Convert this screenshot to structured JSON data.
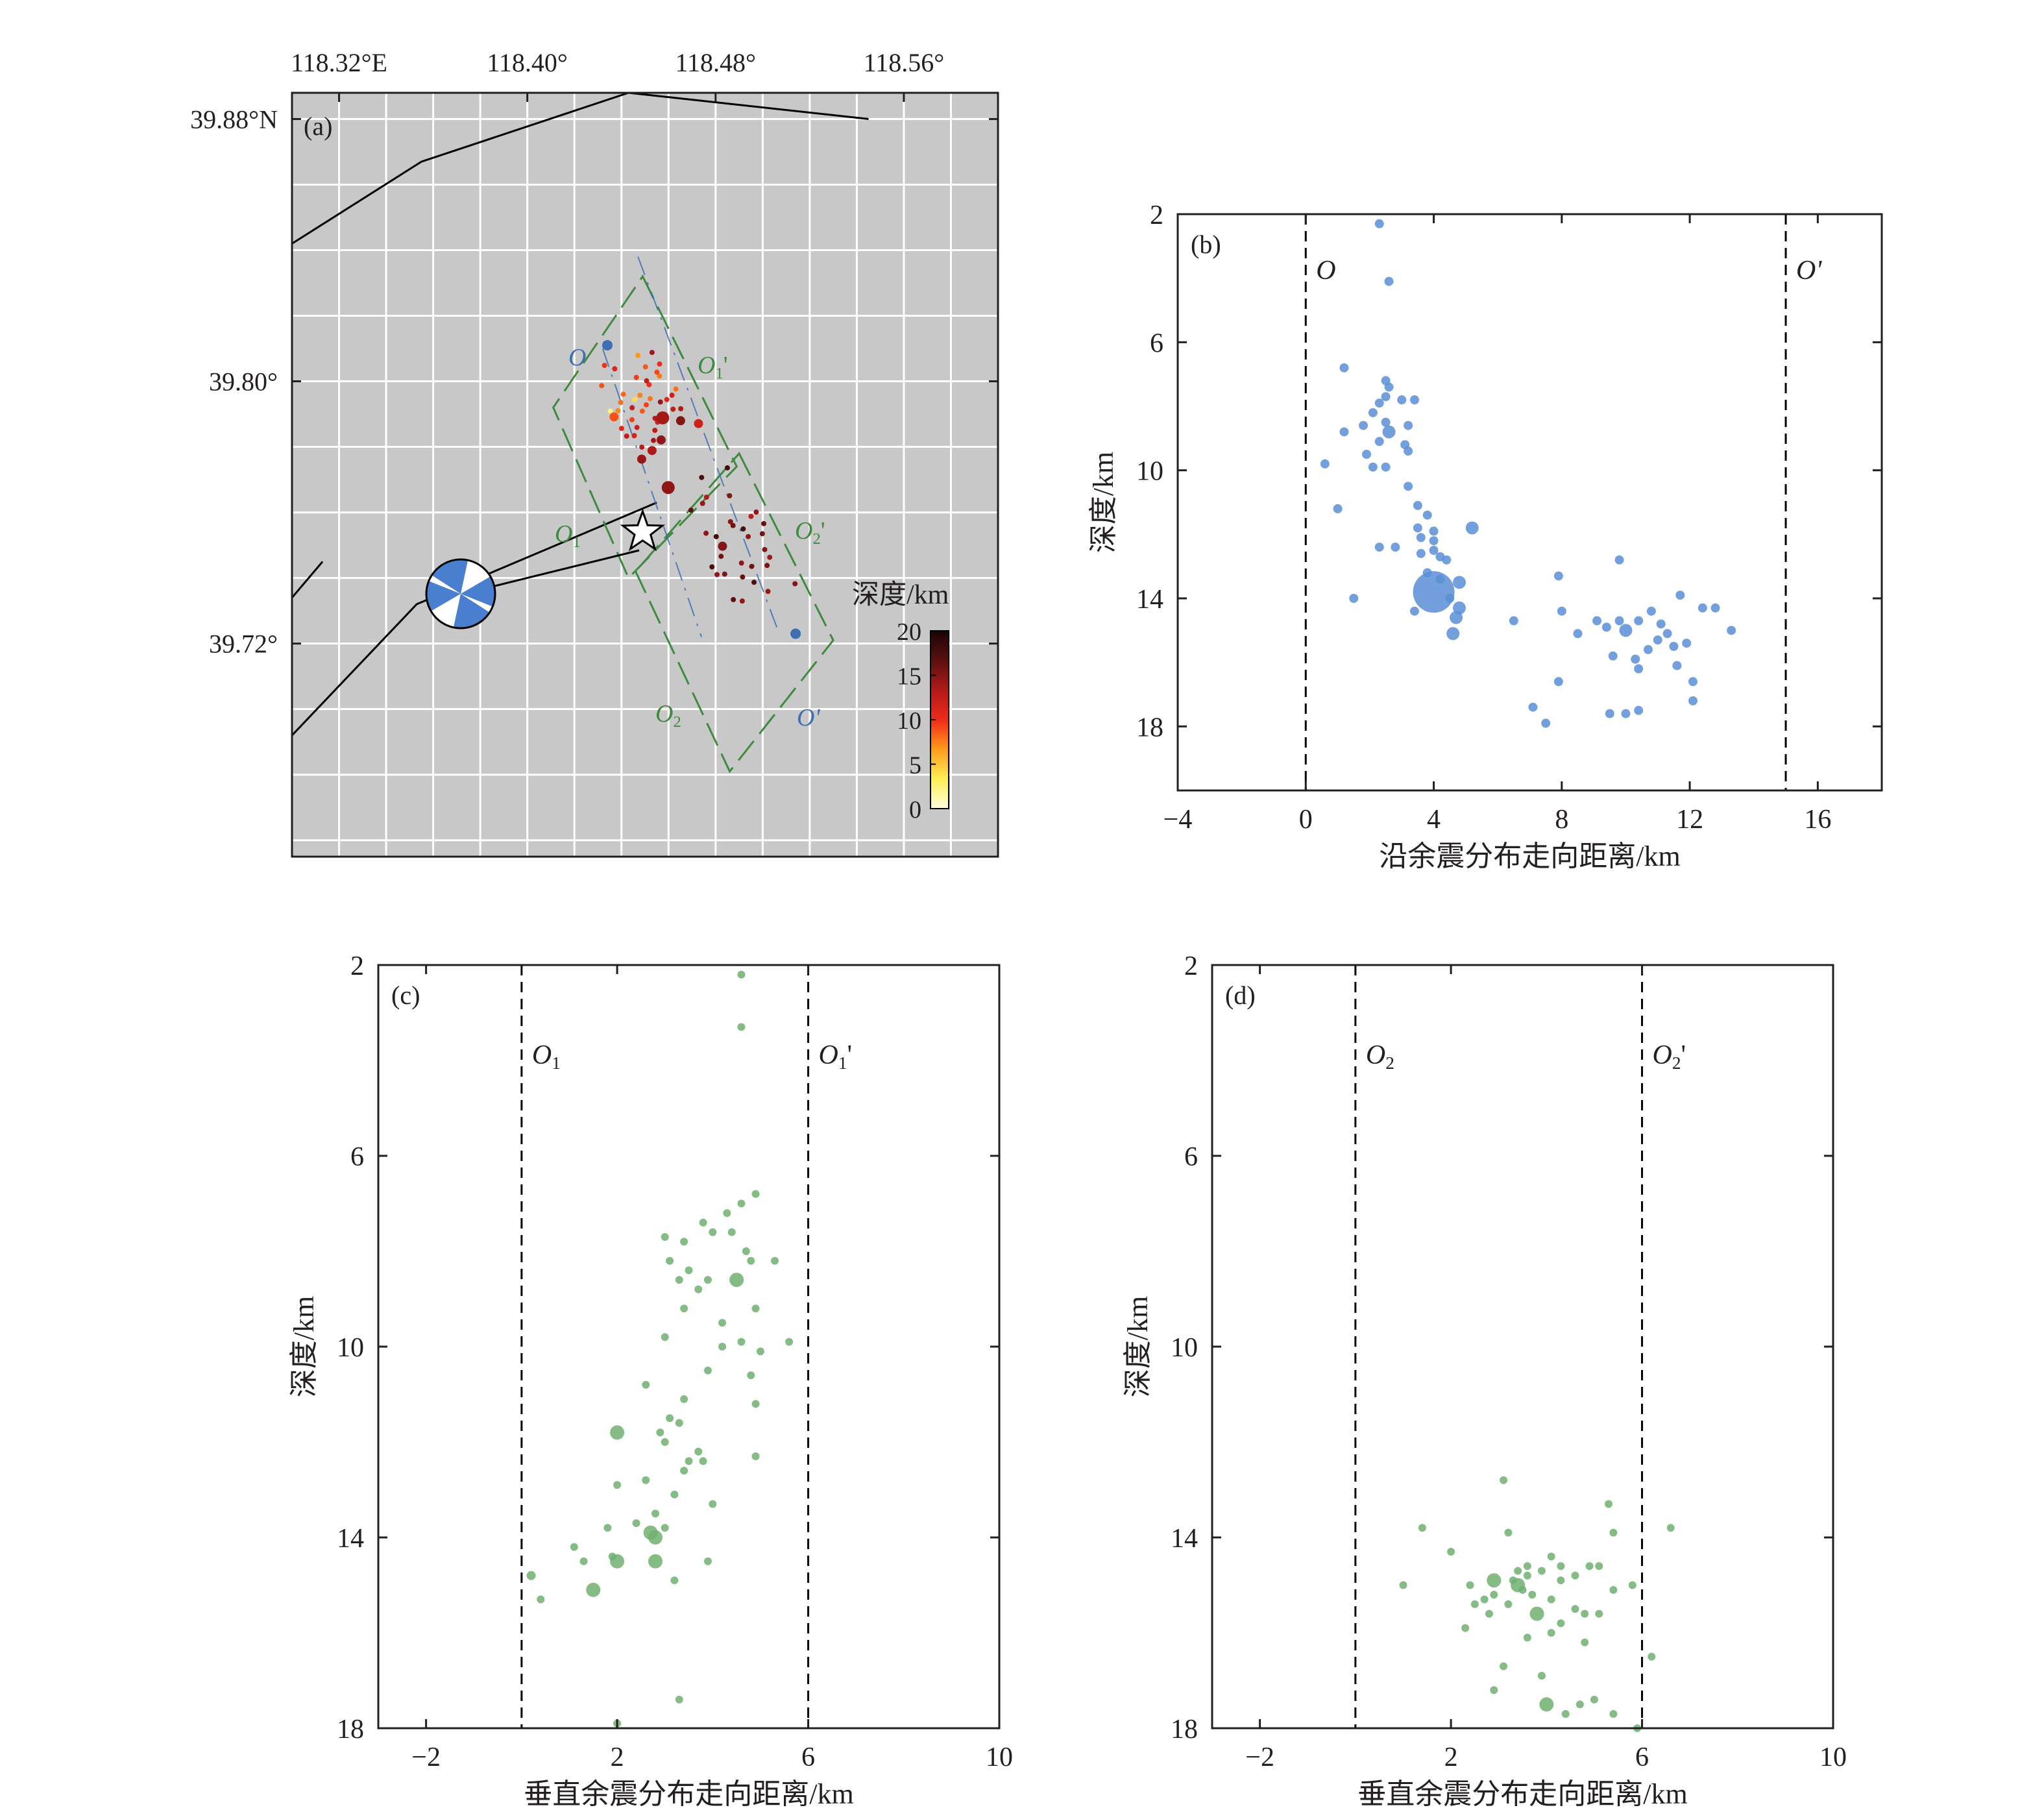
{
  "colors": {
    "map_bg": "#c8c8c8",
    "grid": "#ffffff",
    "fault": "#000000",
    "blue": "#5b8fd6",
    "blue_line": "#3e6fb3",
    "green": "#70b070",
    "green_dark": "#2e7d2e",
    "dash_green": "#3f8a3f",
    "axis": "#231f20"
  },
  "map": {
    "panel_label": "(a)",
    "lon_ticks": [
      118.32,
      118.4,
      118.48,
      118.56
    ],
    "lon_labels": [
      "118.32°E",
      "118.40°",
      "118.48°",
      "118.56°"
    ],
    "lat_ticks": [
      39.88,
      39.8,
      39.72
    ],
    "lat_labels": [
      "39.88°N",
      "39.80°",
      "39.72°"
    ],
    "lon_range": [
      118.3,
      118.6
    ],
    "lat_range": [
      39.655,
      39.888
    ],
    "faults": [
      [
        [
          118.3,
          39.842
        ],
        [
          118.355,
          39.867
        ],
        [
          118.443,
          39.888
        ],
        [
          118.545,
          39.88
        ]
      ],
      [
        [
          118.3,
          39.734
        ],
        [
          118.313,
          39.745
        ]
      ],
      [
        [
          118.3,
          39.692
        ],
        [
          118.353,
          39.732
        ],
        [
          118.455,
          39.763
        ]
      ]
    ],
    "box1": [
      [
        118.449,
        39.832
      ],
      [
        118.489,
        39.774
      ],
      [
        118.443,
        39.74
      ],
      [
        118.411,
        39.792
      ]
    ],
    "box2": [
      [
        118.49,
        39.778
      ],
      [
        118.53,
        39.721
      ],
      [
        118.486,
        39.681
      ],
      [
        118.446,
        39.742
      ]
    ],
    "blue_line_1": [
      [
        118.432,
        39.81
      ],
      [
        118.474,
        39.722
      ]
    ],
    "blue_line_2": [
      [
        118.447,
        39.838
      ],
      [
        118.506,
        39.725
      ]
    ],
    "label_O": "O",
    "label_Op": "O'",
    "label_O1": "O1",
    "label_O1p": "O1'",
    "label_O2": "O2",
    "label_O2p": "O2'",
    "point_O": [
      118.434,
      39.811
    ],
    "point_Op": [
      118.514,
      39.723
    ],
    "epicenter": [
      118.449,
      39.754
    ],
    "beachball": [
      118.372,
      39.734
    ],
    "colorbar_title": "深度/km",
    "colorbar_ticks": [
      0,
      5,
      10,
      15,
      20
    ],
    "colorbar_labels": [
      "0",
      "5",
      "10",
      "15",
      "20"
    ],
    "colorbar_stops": [
      "#ffffe0",
      "#ffee55",
      "#ff9a1a",
      "#ee2a1a",
      "#b21a1a",
      "#5a1010",
      "#1a0505"
    ]
  },
  "chart_data": [
    {
      "panel": "b",
      "type": "scatter",
      "panel_label": "(b)",
      "xlabel": "沿余震分布走向距离/km",
      "ylabel": "深度/km",
      "xlim": [
        -4,
        18
      ],
      "ylim": [
        20,
        2
      ],
      "xticks": [
        -4,
        0,
        4,
        8,
        12,
        16
      ],
      "xtick_labels": [
        "−4",
        "0",
        "4",
        "8",
        "12",
        "16"
      ],
      "yticks": [
        2,
        6,
        10,
        14,
        18
      ],
      "ytick_labels": [
        "2",
        "6",
        "10",
        "14",
        "18"
      ],
      "vlines": [
        0,
        15
      ],
      "vline_labels": [
        "O",
        "O'"
      ],
      "points": [
        [
          2.3,
          2.3,
          1
        ],
        [
          2.6,
          4.1,
          1
        ],
        [
          1.2,
          6.8,
          1
        ],
        [
          2.5,
          7.2,
          1
        ],
        [
          2.6,
          7.4,
          1
        ],
        [
          2.5,
          7.7,
          1
        ],
        [
          2.3,
          7.9,
          1
        ],
        [
          3.0,
          7.8,
          1
        ],
        [
          3.4,
          7.8,
          1
        ],
        [
          2.1,
          8.2,
          1
        ],
        [
          2.5,
          8.5,
          1
        ],
        [
          2.6,
          8.8,
          2
        ],
        [
          3.2,
          8.6,
          1
        ],
        [
          1.8,
          8.6,
          1
        ],
        [
          1.2,
          8.8,
          1
        ],
        [
          3.1,
          9.2,
          1
        ],
        [
          2.3,
          9.1,
          1
        ],
        [
          3.2,
          9.4,
          1
        ],
        [
          1.9,
          9.5,
          1
        ],
        [
          2.1,
          9.9,
          1
        ],
        [
          0.6,
          9.8,
          1
        ],
        [
          2.5,
          9.9,
          1
        ],
        [
          3.2,
          10.5,
          1
        ],
        [
          1.0,
          11.2,
          1
        ],
        [
          3.5,
          11.1,
          1
        ],
        [
          3.8,
          11.4,
          1
        ],
        [
          4.0,
          11.9,
          1
        ],
        [
          3.5,
          11.8,
          1
        ],
        [
          3.6,
          12.1,
          1
        ],
        [
          4.0,
          12.2,
          1
        ],
        [
          5.2,
          11.8,
          2
        ],
        [
          2.8,
          12.4,
          1
        ],
        [
          2.3,
          12.4,
          1
        ],
        [
          3.6,
          12.6,
          1
        ],
        [
          4.2,
          12.7,
          1
        ],
        [
          4.0,
          12.5,
          1
        ],
        [
          4.4,
          12.8,
          1
        ],
        [
          3.8,
          13.2,
          1
        ],
        [
          4.2,
          13.4,
          1
        ],
        [
          4.8,
          13.5,
          2
        ],
        [
          4.0,
          13.8,
          3
        ],
        [
          1.5,
          14.0,
          1
        ],
        [
          4.5,
          14.0,
          1
        ],
        [
          3.4,
          14.4,
          1
        ],
        [
          4.8,
          14.3,
          2
        ],
        [
          4.7,
          14.6,
          2
        ],
        [
          4.6,
          15.1,
          2
        ],
        [
          6.5,
          14.7,
          6
        ],
        [
          7.9,
          13.3,
          1
        ],
        [
          9.8,
          12.8,
          1
        ],
        [
          9.1,
          14.7,
          1
        ],
        [
          9.4,
          14.9,
          1
        ],
        [
          9.8,
          14.7,
          1
        ],
        [
          10.0,
          15.0,
          2
        ],
        [
          10.4,
          14.7,
          1
        ],
        [
          10.8,
          14.4,
          1
        ],
        [
          11.1,
          14.8,
          1
        ],
        [
          11.3,
          15.1,
          1
        ],
        [
          11.0,
          15.3,
          1
        ],
        [
          11.5,
          15.5,
          1
        ],
        [
          10.7,
          15.6,
          1
        ],
        [
          10.3,
          15.9,
          1
        ],
        [
          9.6,
          15.8,
          1
        ],
        [
          10.4,
          16.2,
          1
        ],
        [
          11.6,
          16.1,
          1
        ],
        [
          11.9,
          15.4,
          1
        ],
        [
          12.1,
          16.6,
          1
        ],
        [
          12.1,
          17.2,
          1
        ],
        [
          11.7,
          13.9,
          1
        ],
        [
          12.4,
          14.3,
          1
        ],
        [
          12.8,
          14.3,
          1
        ],
        [
          13.3,
          15.0,
          1
        ],
        [
          7.9,
          16.6,
          1
        ],
        [
          7.1,
          17.4,
          1
        ],
        [
          7.5,
          17.9,
          1
        ],
        [
          9.5,
          17.6,
          1
        ],
        [
          10.0,
          17.6,
          1
        ],
        [
          10.4,
          17.5,
          1
        ],
        [
          8.0,
          14.4,
          1
        ],
        [
          8.5,
          15.1,
          1
        ]
      ]
    },
    {
      "panel": "c",
      "type": "scatter",
      "panel_label": "(c)",
      "xlabel": "垂直余震分布走向距离/km",
      "ylabel": "深度/km",
      "xlim": [
        -3,
        10
      ],
      "ylim": [
        18,
        2
      ],
      "xticks": [
        -2,
        2,
        6,
        10
      ],
      "xtick_labels": [
        "−2",
        "2",
        "6",
        "10"
      ],
      "yticks": [
        2,
        6,
        10,
        14,
        18
      ],
      "ytick_labels": [
        "2",
        "6",
        "10",
        "14",
        "18"
      ],
      "vlines": [
        0,
        6
      ],
      "vline_labels": [
        "O1",
        "O1'"
      ],
      "points": [
        [
          4.6,
          2.2,
          1
        ],
        [
          4.6,
          3.3,
          1
        ],
        [
          4.9,
          6.8,
          1
        ],
        [
          4.6,
          7.0,
          1
        ],
        [
          4.3,
          7.2,
          1
        ],
        [
          3.8,
          7.4,
          1
        ],
        [
          4.0,
          7.6,
          1
        ],
        [
          4.4,
          7.6,
          1
        ],
        [
          3.0,
          7.7,
          1
        ],
        [
          3.4,
          7.8,
          1
        ],
        [
          4.7,
          8.0,
          1
        ],
        [
          4.8,
          8.2,
          1
        ],
        [
          3.1,
          8.2,
          1
        ],
        [
          5.3,
          8.2,
          1
        ],
        [
          3.5,
          8.4,
          1
        ],
        [
          3.3,
          8.6,
          1
        ],
        [
          3.9,
          8.6,
          1
        ],
        [
          4.5,
          8.6,
          2
        ],
        [
          3.7,
          8.8,
          1
        ],
        [
          3.4,
          9.2,
          1
        ],
        [
          4.9,
          9.2,
          1
        ],
        [
          4.2,
          9.5,
          1
        ],
        [
          3.0,
          9.8,
          1
        ],
        [
          4.6,
          9.9,
          1
        ],
        [
          5.6,
          9.9,
          1
        ],
        [
          4.2,
          10.0,
          1
        ],
        [
          5.0,
          10.1,
          1
        ],
        [
          3.9,
          10.5,
          1
        ],
        [
          4.8,
          10.6,
          1
        ],
        [
          2.6,
          10.8,
          1
        ],
        [
          3.4,
          11.1,
          1
        ],
        [
          4.9,
          11.2,
          1
        ],
        [
          3.1,
          11.5,
          1
        ],
        [
          3.3,
          11.6,
          1
        ],
        [
          2.0,
          11.8,
          2
        ],
        [
          2.9,
          11.8,
          1
        ],
        [
          3.0,
          12.0,
          1
        ],
        [
          3.7,
          12.2,
          1
        ],
        [
          3.5,
          12.4,
          1
        ],
        [
          3.4,
          12.6,
          1
        ],
        [
          4.9,
          12.3,
          1
        ],
        [
          3.8,
          12.4,
          1
        ],
        [
          2.6,
          12.8,
          1
        ],
        [
          2.0,
          12.9,
          1
        ],
        [
          3.2,
          13.1,
          1
        ],
        [
          4.0,
          13.3,
          1
        ],
        [
          2.8,
          13.5,
          1
        ],
        [
          2.4,
          13.7,
          1
        ],
        [
          1.8,
          13.8,
          1
        ],
        [
          3.0,
          13.8,
          1
        ],
        [
          2.7,
          13.9,
          2
        ],
        [
          2.8,
          14.0,
          2
        ],
        [
          1.1,
          14.2,
          1
        ],
        [
          1.3,
          14.5,
          1
        ],
        [
          1.9,
          14.4,
          1
        ],
        [
          2.0,
          14.5,
          2
        ],
        [
          2.8,
          14.5,
          2
        ],
        [
          3.9,
          14.5,
          1
        ],
        [
          3.2,
          14.9,
          1
        ],
        [
          0.2,
          14.8,
          5
        ],
        [
          1.5,
          15.1,
          2
        ],
        [
          0.4,
          15.3,
          1
        ],
        [
          3.3,
          17.4,
          1
        ],
        [
          2.0,
          17.9,
          1
        ]
      ]
    },
    {
      "panel": "d",
      "type": "scatter",
      "panel_label": "(d)",
      "xlabel": "垂直余震分布走向距离/km",
      "ylabel": "深度/km",
      "xlim": [
        -3,
        10
      ],
      "ylim": [
        18,
        2
      ],
      "xticks": [
        -2,
        2,
        6,
        10
      ],
      "xtick_labels": [
        "−2",
        "2",
        "6",
        "10"
      ],
      "yticks": [
        2,
        6,
        10,
        14,
        18
      ],
      "ytick_labels": [
        "2",
        "6",
        "10",
        "14",
        "18"
      ],
      "vlines": [
        0,
        6
      ],
      "vline_labels": [
        "O2",
        "O2'"
      ],
      "points": [
        [
          3.1,
          12.8,
          1
        ],
        [
          5.3,
          13.3,
          1
        ],
        [
          1.4,
          13.8,
          1
        ],
        [
          3.2,
          13.9,
          1
        ],
        [
          5.4,
          13.9,
          1
        ],
        [
          6.6,
          13.8,
          1
        ],
        [
          2.0,
          14.3,
          1
        ],
        [
          4.1,
          14.4,
          1
        ],
        [
          5.1,
          14.6,
          1
        ],
        [
          3.6,
          14.6,
          1
        ],
        [
          3.4,
          14.7,
          1
        ],
        [
          3.9,
          14.7,
          1
        ],
        [
          4.3,
          14.6,
          1
        ],
        [
          4.9,
          14.6,
          1
        ],
        [
          2.9,
          14.9,
          2
        ],
        [
          3.3,
          14.9,
          1
        ],
        [
          3.6,
          14.8,
          1
        ],
        [
          4.6,
          14.8,
          1
        ],
        [
          4.3,
          14.9,
          1
        ],
        [
          2.4,
          15.0,
          1
        ],
        [
          3.4,
          15.0,
          2
        ],
        [
          3.5,
          15.1,
          1
        ],
        [
          3.7,
          15.2,
          1
        ],
        [
          1.0,
          15.0,
          1
        ],
        [
          2.9,
          15.2,
          1
        ],
        [
          5.4,
          15.1,
          1
        ],
        [
          2.7,
          15.3,
          1
        ],
        [
          2.5,
          15.4,
          1
        ],
        [
          3.2,
          15.4,
          1
        ],
        [
          4.1,
          15.3,
          1
        ],
        [
          5.8,
          15.0,
          1
        ],
        [
          2.8,
          15.6,
          1
        ],
        [
          3.8,
          15.6,
          2
        ],
        [
          4.6,
          15.5,
          1
        ],
        [
          4.8,
          15.6,
          1
        ],
        [
          5.1,
          15.6,
          1
        ],
        [
          2.3,
          15.9,
          1
        ],
        [
          4.3,
          15.8,
          1
        ],
        [
          4.1,
          16.0,
          1
        ],
        [
          3.6,
          16.1,
          1
        ],
        [
          4.8,
          16.2,
          1
        ],
        [
          6.2,
          16.5,
          1
        ],
        [
          3.1,
          16.7,
          1
        ],
        [
          3.9,
          16.9,
          1
        ],
        [
          2.9,
          17.2,
          1
        ],
        [
          4.0,
          17.5,
          2
        ],
        [
          4.7,
          17.5,
          1
        ],
        [
          4.4,
          17.7,
          1
        ],
        [
          5.0,
          17.4,
          1
        ],
        [
          5.4,
          17.7,
          1
        ],
        [
          5.9,
          18.0,
          1
        ]
      ]
    }
  ]
}
